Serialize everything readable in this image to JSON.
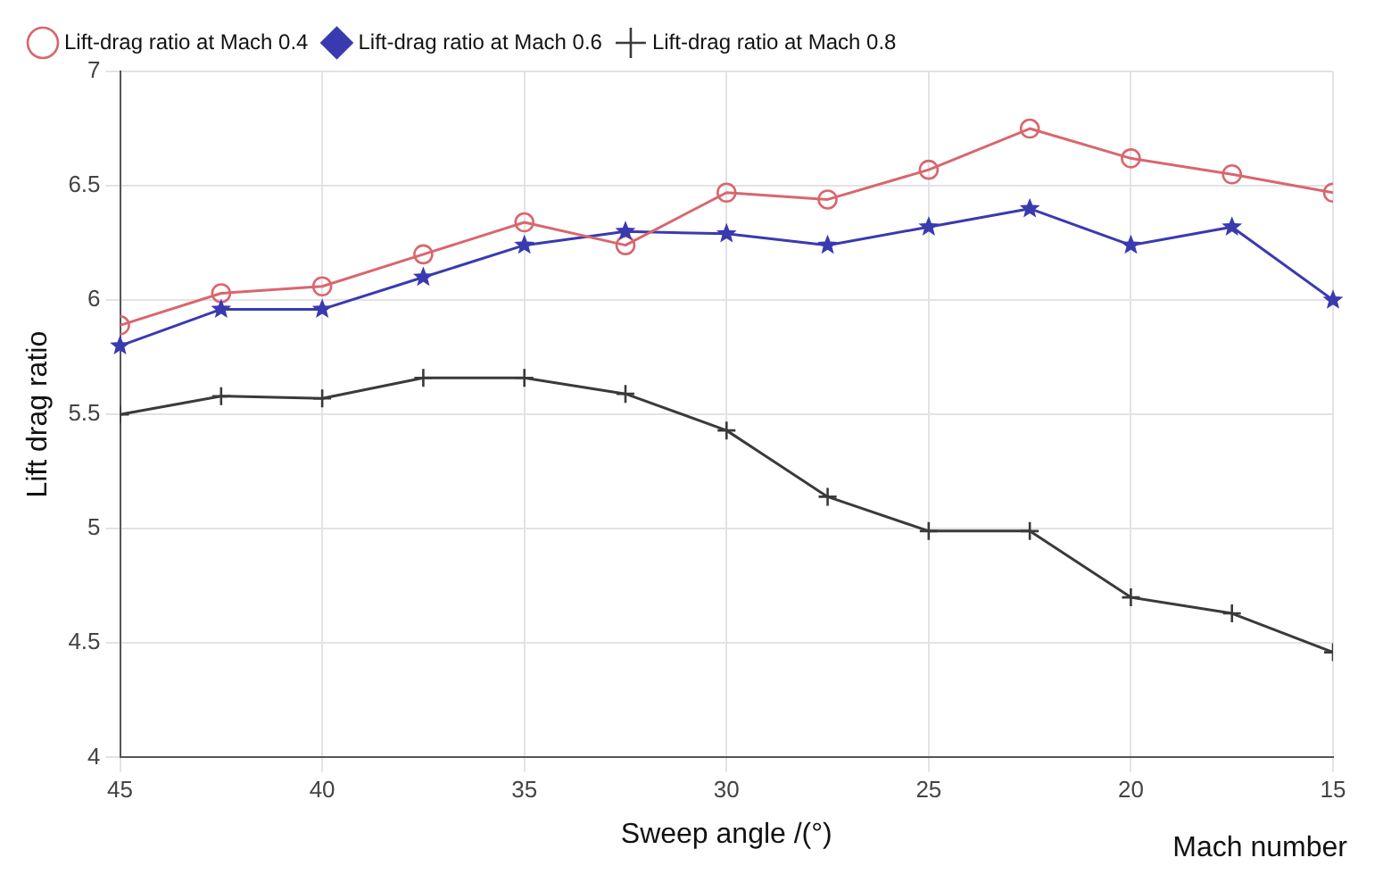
{
  "chart_data": {
    "type": "line",
    "xlabel": "Sweep angle /(°)",
    "ylabel": "Lift drag ratio",
    "annotations": [
      "Mach number"
    ],
    "x": [
      45,
      42.5,
      40,
      37.5,
      35,
      32.5,
      30,
      27.5,
      25,
      22.5,
      20,
      17.5,
      15
    ],
    "xlim": [
      45,
      15
    ],
    "xticks": [
      45,
      40,
      35,
      30,
      25,
      20,
      15
    ],
    "ylim": [
      4,
      7
    ],
    "yticks": [
      4,
      4.5,
      5,
      5.5,
      6,
      6.5,
      7
    ],
    "grid": true,
    "legend": "top left",
    "line_style": "solid",
    "series": [
      {
        "name": "Lift-drag ratio at Mach 0.4",
        "color": "#d9666e",
        "marker": "circle",
        "values": [
          5.89,
          6.03,
          6.06,
          6.2,
          6.34,
          6.24,
          6.47,
          6.44,
          6.57,
          6.75,
          6.62,
          6.55,
          6.47
        ]
      },
      {
        "name": "Lift-drag ratio at Mach 0.6",
        "color": "#3a3ab0",
        "marker": "star",
        "values": [
          5.8,
          5.96,
          5.96,
          6.1,
          6.24,
          6.3,
          6.29,
          6.24,
          6.32,
          6.4,
          6.24,
          6.32,
          6.0
        ]
      },
      {
        "name": "Lift-drag ratio at Mach 0.8",
        "color": "#3a3a3a",
        "marker": "cross",
        "values": [
          5.5,
          5.58,
          5.57,
          5.66,
          5.66,
          5.59,
          5.43,
          5.14,
          4.99,
          4.99,
          4.7,
          4.63,
          4.46
        ]
      }
    ]
  }
}
